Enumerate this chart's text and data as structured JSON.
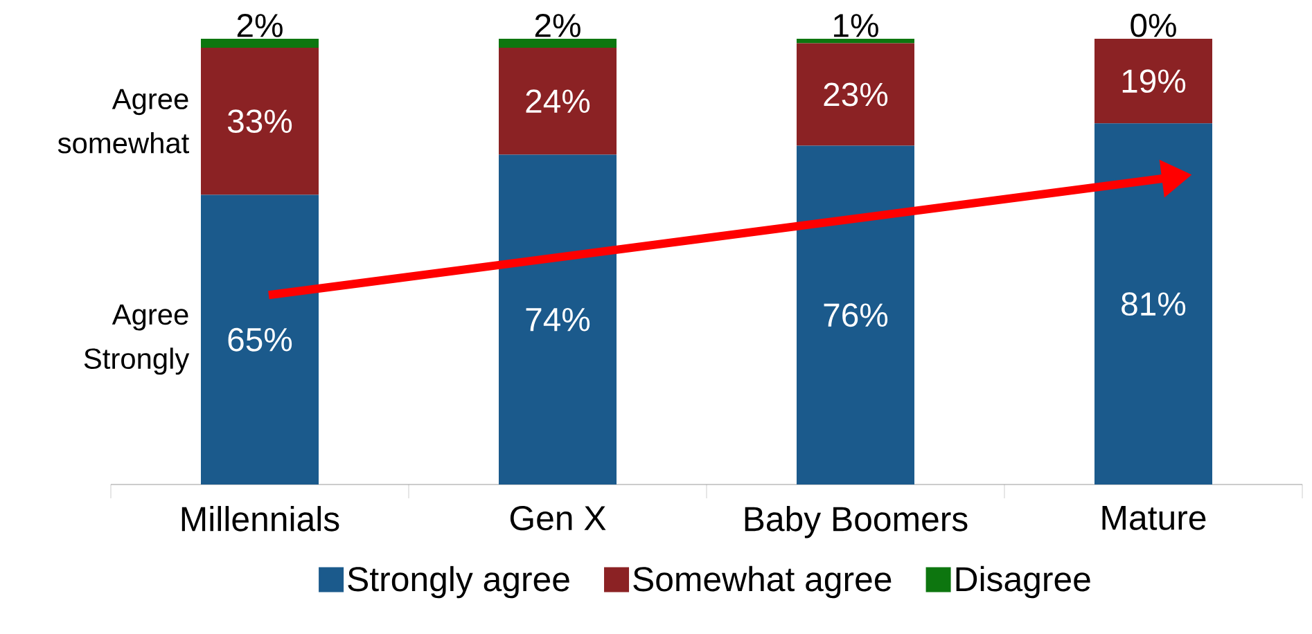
{
  "chart_data": {
    "type": "bar",
    "stacked": true,
    "legend": "bottom",
    "categories": [
      "Millennials",
      "Gen X",
      "Baby Boomers",
      "Mature"
    ],
    "series": [
      {
        "name": "Strongly agree",
        "color": "#1b5a8c",
        "values": [
          65,
          74,
          76,
          81
        ],
        "value_labels": [
          "65%",
          "74%",
          "76%",
          "81%"
        ]
      },
      {
        "name": "Somewhat agree",
        "color": "#8b2224",
        "values": [
          33,
          24,
          23,
          19
        ],
        "value_labels": [
          "33%",
          "24%",
          "23%",
          "19%"
        ]
      },
      {
        "name": "Disagree",
        "color": "#0d760f",
        "values": [
          2,
          2,
          1,
          0
        ],
        "value_labels": [
          "2%",
          "2%",
          "1%",
          "0%"
        ]
      }
    ],
    "annotations": [
      "Agree somewhat",
      "Agree Strongly"
    ]
  }
}
